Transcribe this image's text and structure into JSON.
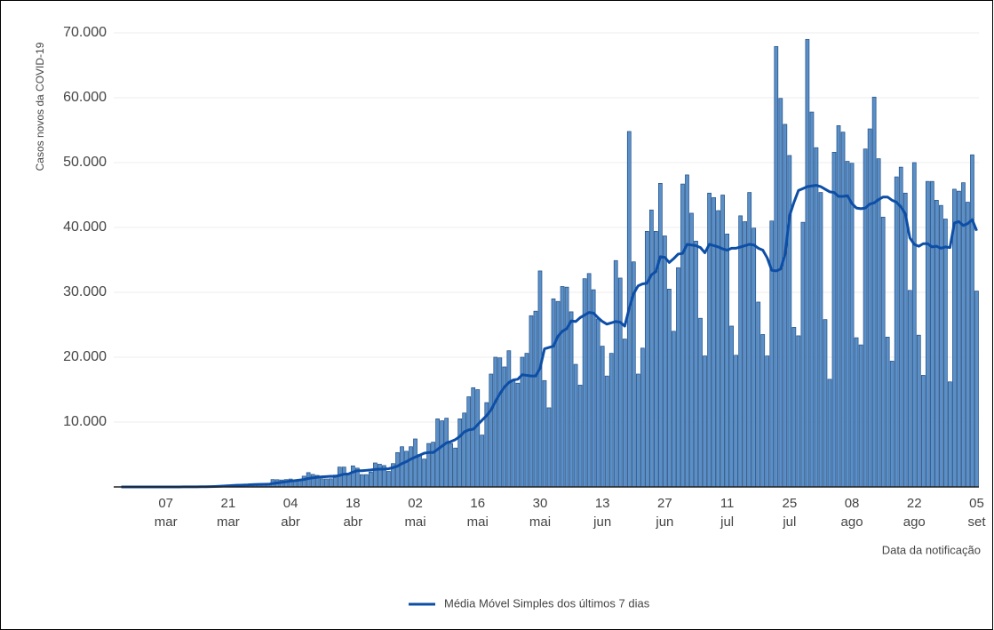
{
  "chart_data": {
    "type": "bar",
    "ylabel": "Casos novos da COVID-19",
    "xlabel": "Data da notificação",
    "categories": [
      null,
      null,
      null,
      null,
      null,
      null,
      null,
      null,
      null,
      null,
      "07 mar",
      null,
      null,
      null,
      null,
      null,
      null,
      null,
      null,
      null,
      null,
      null,
      null,
      null,
      "21 mar",
      null,
      null,
      null,
      null,
      null,
      null,
      null,
      null,
      null,
      null,
      null,
      null,
      null,
      "04 abr",
      null,
      null,
      null,
      null,
      null,
      null,
      null,
      null,
      null,
      null,
      null,
      null,
      null,
      "18 abr",
      null,
      null,
      null,
      null,
      null,
      null,
      null,
      null,
      null,
      null,
      null,
      null,
      null,
      "02 mai",
      null,
      null,
      null,
      null,
      null,
      null,
      null,
      null,
      null,
      null,
      null,
      null,
      null,
      "16 mai",
      null,
      null,
      null,
      null,
      null,
      null,
      null,
      null,
      null,
      null,
      null,
      null,
      null,
      "30 mai",
      null,
      null,
      null,
      null,
      null,
      null,
      null,
      null,
      null,
      null,
      null,
      null,
      null,
      "13 jun",
      null,
      null,
      null,
      null,
      null,
      null,
      null,
      null,
      null,
      null,
      null,
      null,
      null,
      "27 jun",
      null,
      null,
      null,
      null,
      null,
      null,
      null,
      null,
      null,
      null,
      null,
      null,
      null,
      "11 jul",
      null,
      null,
      null,
      null,
      null,
      null,
      null,
      null,
      null,
      null,
      null,
      null,
      null,
      "25 jul",
      null,
      null,
      null,
      null,
      null,
      null,
      null,
      null,
      null,
      null,
      null,
      null,
      null,
      "08 ago",
      null,
      null,
      null,
      null,
      null,
      null,
      null,
      null,
      null,
      null,
      null,
      null,
      null,
      "22 ago",
      null,
      null,
      null,
      null,
      null,
      null,
      null,
      null,
      null,
      null,
      null,
      null,
      null,
      "05 set"
    ],
    "series": [
      {
        "color": "#5b8fc7",
        "values": [
          1,
          0,
          0,
          1,
          0,
          0,
          0,
          2,
          5,
          5,
          4,
          6,
          6,
          12,
          12,
          18,
          21,
          43,
          55,
          80,
          120,
          180,
          230,
          280,
          310,
          340,
          380,
          340,
          230,
          480,
          500,
          510,
          350,
          320,
          1140,
          1120,
          1070,
          1140,
          1220,
          850,
          930,
          1660,
          2210,
          1930,
          1780,
          1260,
          1240,
          1260,
          1830,
          3060,
          3060,
          2100,
          3250,
          2900,
          1900,
          1900,
          2300,
          3700,
          3500,
          3300,
          2400,
          3600,
          5300,
          6200,
          5500,
          6200,
          7400,
          5000,
          4300,
          6700,
          6900,
          10500,
          10200,
          10600,
          6700,
          6000,
          10500,
          11400,
          13900,
          15300,
          15000,
          8000,
          13000,
          17400,
          20000,
          19900,
          18500,
          21000,
          16500,
          16000,
          20000,
          20600,
          26400,
          27100,
          33300,
          16400,
          12200,
          29000,
          28600,
          30900,
          30800,
          27000,
          18900,
          15700,
          32100,
          32900,
          30400,
          25900,
          21700,
          17100,
          20600,
          34900,
          32200,
          22800,
          54800,
          34700,
          17400,
          21400,
          39400,
          42700,
          39400,
          46800,
          38700,
          30500,
          24000,
          33800,
          46700,
          48100,
          42200,
          37900,
          26000,
          20200,
          45300,
          44600,
          42600,
          45000,
          39000,
          24800,
          20300,
          41800,
          40900,
          45400,
          39900,
          28500,
          23500,
          20200,
          41000,
          67900,
          59900,
          55900,
          51100,
          24600,
          23300,
          40800,
          69000,
          57800,
          52300,
          45400,
          25800,
          16600,
          51600,
          55700,
          54700,
          50200,
          49900,
          23000,
          21900,
          52100,
          55200,
          60100,
          50600,
          41600,
          23100,
          19400,
          47800,
          49300,
          45300,
          30300,
          50000,
          23400,
          17200,
          47100,
          47100,
          44200,
          43400,
          41300,
          16200,
          45900,
          45600,
          46900,
          43900,
          51200,
          30200
        ]
      },
      {
        "name": "Média Móvel Simples dos últimos 7 dias",
        "type": "line",
        "color": "#0d4ea6",
        "values": [
          0,
          0,
          0,
          0,
          0,
          0,
          0,
          1,
          2,
          3,
          3,
          4,
          5,
          7,
          9,
          11,
          14,
          19,
          26,
          35,
          50,
          70,
          100,
          140,
          180,
          220,
          260,
          280,
          300,
          340,
          370,
          400,
          410,
          420,
          520,
          610,
          710,
          800,
          900,
          980,
          1060,
          1140,
          1300,
          1400,
          1490,
          1550,
          1600,
          1640,
          1620,
          1780,
          1960,
          2010,
          2290,
          2500,
          2500,
          2560,
          2620,
          2700,
          2740,
          2750,
          2810,
          2980,
          3200,
          3600,
          3900,
          4300,
          4600,
          4900,
          5200,
          5300,
          5300,
          5800,
          6300,
          6800,
          7000,
          7300,
          7800,
          8500,
          8800,
          8900,
          9600,
          10300,
          11000,
          11900,
          13200,
          14400,
          15400,
          16100,
          16500,
          16600,
          17300,
          17200,
          17100,
          17100,
          18300,
          21300,
          21500,
          21700,
          23200,
          24000,
          24400,
          25600,
          25500,
          26100,
          26500,
          26900,
          26800,
          26100,
          25500,
          25100,
          25300,
          25500,
          25400,
          24800,
          27500,
          29800,
          31000,
          31300,
          31400,
          32700,
          33200,
          35500,
          35400,
          34600,
          35200,
          35900,
          36000,
          37400,
          37300,
          37200,
          36900,
          36100,
          37400,
          37200,
          37000,
          36700,
          36500,
          36800,
          36800,
          37000,
          37200,
          37400,
          37300,
          36800,
          36500,
          35300,
          33400,
          33300,
          33600,
          35900,
          41800,
          43900,
          45700,
          46000,
          46300,
          46400,
          46500,
          46300,
          45900,
          45500,
          45400,
          44800,
          44800,
          44900,
          43700,
          43000,
          42900,
          43000,
          43600,
          43800,
          44300,
          44700,
          44700,
          44200,
          43900,
          43200,
          42100,
          38400,
          37400,
          37100,
          37500,
          37500,
          37000,
          37100,
          36800,
          37000,
          36900,
          40700,
          40900,
          40300,
          40600,
          41200,
          39500
        ]
      }
    ],
    "ylim": [
      0,
      70000
    ],
    "yticks": [
      {
        "value": 10000,
        "label": "10.000"
      },
      {
        "value": 20000,
        "label": "20.000"
      },
      {
        "value": 30000,
        "label": "30.000"
      },
      {
        "value": 40000,
        "label": "40.000"
      },
      {
        "value": 50000,
        "label": "50.000"
      },
      {
        "value": 60000,
        "label": "60.000"
      },
      {
        "value": 70000,
        "label": "70.000"
      }
    ],
    "grid": true,
    "legend": "bottom"
  }
}
